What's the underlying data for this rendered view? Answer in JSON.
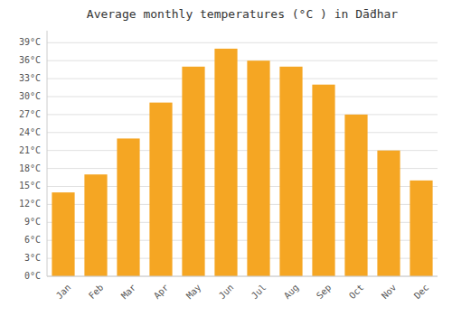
{
  "chart_data": {
    "type": "bar",
    "title": "Average monthly temperatures (°C ) in Dā̈dhar",
    "categories": [
      "Jan",
      "Feb",
      "Mar",
      "Apr",
      "May",
      "Jun",
      "Jul",
      "Aug",
      "Sep",
      "Oct",
      "Nov",
      "Dec"
    ],
    "values": [
      14,
      17,
      23,
      29,
      35,
      38,
      36,
      35,
      32,
      27,
      21,
      16
    ],
    "color": "#F5A623",
    "ylim": [
      0,
      41
    ],
    "yticks": [
      {
        "value": 0,
        "label": "0°C"
      },
      {
        "value": 3,
        "label": "3°C"
      },
      {
        "value": 6,
        "label": "6°C"
      },
      {
        "value": 9,
        "label": "9°C"
      },
      {
        "value": 12,
        "label": "12°C"
      },
      {
        "value": 15,
        "label": "15°C"
      },
      {
        "value": 18,
        "label": "18°C"
      },
      {
        "value": 21,
        "label": "21°C"
      },
      {
        "value": 24,
        "label": "24°C"
      },
      {
        "value": 27,
        "label": "27°C"
      },
      {
        "value": 30,
        "label": "30°C"
      },
      {
        "value": 33,
        "label": "33°C"
      },
      {
        "value": 36,
        "label": "36°C"
      },
      {
        "value": 39,
        "label": "39°C"
      }
    ],
    "grid": true
  }
}
